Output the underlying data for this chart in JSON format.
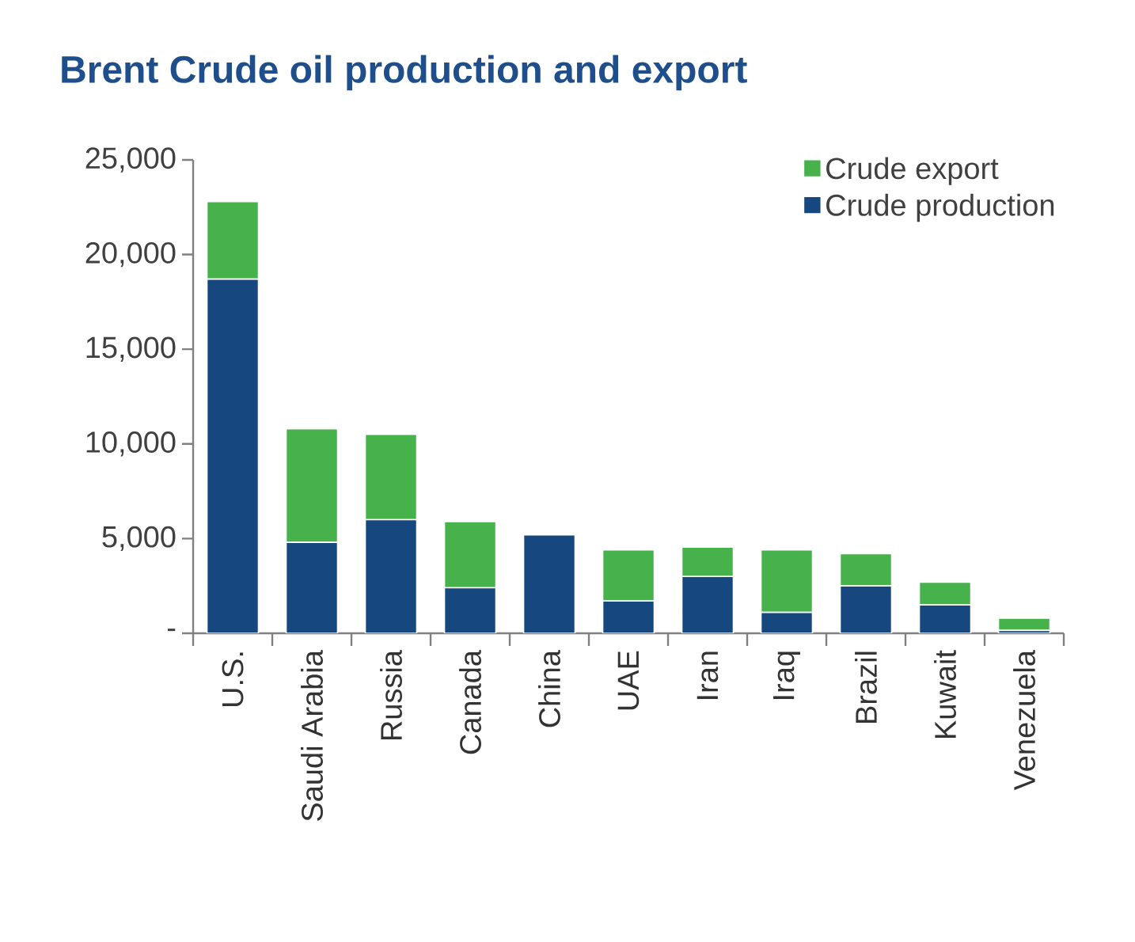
{
  "chart_data": {
    "type": "bar",
    "title": "Brent Crude oil production and export",
    "stacked": true,
    "legend": "top right",
    "grid": false,
    "categories": [
      "U.S.",
      "Saudi Arabia",
      "Russia",
      "Canada",
      "China",
      "UAE",
      "Iran",
      "Iraq",
      "Brazil",
      "Kuwait",
      "Venezuela"
    ],
    "series": [
      {
        "name": "Crude production",
        "color": "#16487f",
        "values": [
          18700,
          4800,
          6000,
          2400,
          5200,
          1700,
          3000,
          1100,
          2500,
          1500,
          150
        ]
      },
      {
        "name": "Crude export",
        "color": "#47b14b",
        "values": [
          4100,
          6000,
          4500,
          3500,
          0,
          2700,
          1550,
          3300,
          1700,
          1200,
          650
        ]
      }
    ],
    "ylim": [
      0,
      25000
    ],
    "yticks": [
      {
        "value": 0,
        "label": "-"
      },
      {
        "value": 5000,
        "label": "5,000"
      },
      {
        "value": 10000,
        "label": "10,000"
      },
      {
        "value": 15000,
        "label": "15,000"
      },
      {
        "value": 20000,
        "label": "20,000"
      },
      {
        "value": 25000,
        "label": "25,000"
      }
    ]
  }
}
